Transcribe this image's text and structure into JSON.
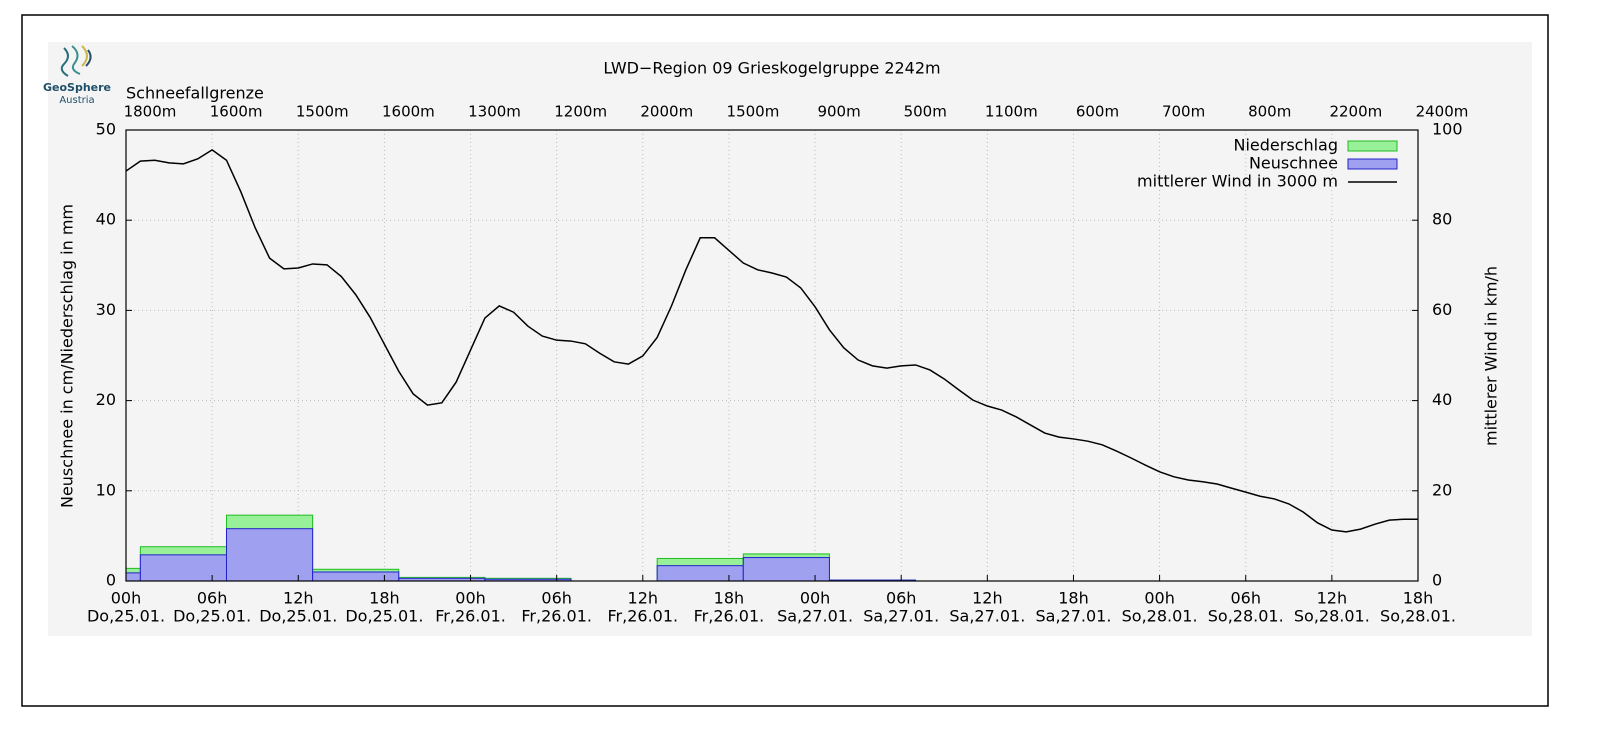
{
  "logo": {
    "name": "GeoSphere",
    "sub": "Austria"
  },
  "chart_data": {
    "type": "combo",
    "title": "LWD−Region 09 Grieskogelgruppe 2242m",
    "ylabel": "Neuschnee in cm/Niederschlag in mm",
    "y2label": "mittlerer Wind in km/h",
    "xlim": [
      0,
      90
    ],
    "ylim": [
      0,
      50
    ],
    "yticks": [
      0,
      10,
      20,
      30,
      40,
      50
    ],
    "y2lim": [
      0,
      100
    ],
    "y2ticks": [
      0,
      20,
      40,
      60,
      80,
      100
    ],
    "xticks": [
      {
        "value": 0,
        "label": "00h"
      },
      {
        "value": 6,
        "label": "06h"
      },
      {
        "value": 12,
        "label": "12h"
      },
      {
        "value": 18,
        "label": "18h"
      },
      {
        "value": 24,
        "label": "00h"
      },
      {
        "value": 30,
        "label": "06h"
      },
      {
        "value": 36,
        "label": "12h"
      },
      {
        "value": 42,
        "label": "18h"
      },
      {
        "value": 48,
        "label": "00h"
      },
      {
        "value": 54,
        "label": "06h"
      },
      {
        "value": 60,
        "label": "12h"
      },
      {
        "value": 66,
        "label": "18h"
      },
      {
        "value": 72,
        "label": "00h"
      },
      {
        "value": 78,
        "label": "06h"
      },
      {
        "value": 84,
        "label": "12h"
      },
      {
        "value": 90,
        "label": "18h"
      }
    ],
    "xtick_dates": [
      "Do,25.01.",
      "Do,25.01.",
      "Do,25.01.",
      "Do,25.01.",
      "Fr,26.01.",
      "Fr,26.01.",
      "Fr,26.01.",
      "Fr,26.01.",
      "Sa,27.01.",
      "Sa,27.01.",
      "Sa,27.01.",
      "Sa,27.01.",
      "So,28.01.",
      "So,28.01.",
      "So,28.01.",
      "So,28.01."
    ],
    "top_axis": {
      "title": "Schneefallgrenze",
      "labels": [
        "1800m",
        "1600m",
        "1500m",
        "1600m",
        "1300m",
        "1200m",
        "2000m",
        "1500m",
        "900m",
        "500m",
        "1100m",
        "600m",
        "700m",
        "800m",
        "2200m",
        "2400m"
      ]
    },
    "grid": true,
    "legend": "top-right",
    "bins": [
      0,
      1,
      7,
      13,
      19,
      25,
      31,
      37,
      43,
      49,
      55
    ],
    "series": [
      {
        "name": "Niederschlag",
        "type": "histogram",
        "color": "#98f098",
        "edge": "#22bb22",
        "values": [
          1.4,
          3.8,
          7.3,
          1.3,
          0.4,
          0.3,
          0,
          2.5,
          3.0,
          0.1
        ]
      },
      {
        "name": "Neuschnee",
        "type": "histogram",
        "color": "#a0a0f0",
        "edge": "#2222cc",
        "values": [
          0.9,
          2.9,
          5.8,
          1.0,
          0.3,
          0.2,
          0,
          1.7,
          2.6,
          0.1
        ]
      },
      {
        "name": "mittlerer Wind in 3000 m",
        "type": "line",
        "axis": "y2",
        "color": "#000000",
        "x": [
          0,
          1,
          2,
          3,
          4,
          5,
          6,
          7,
          8,
          9,
          10,
          11,
          12,
          13,
          14,
          15,
          16,
          17,
          18,
          19,
          20,
          21,
          22,
          23,
          24,
          25,
          26,
          27,
          28,
          29,
          30,
          31,
          32,
          33,
          34,
          35,
          36,
          37,
          38,
          39,
          40,
          41,
          42,
          43,
          44,
          45,
          46,
          47,
          48,
          49,
          50,
          51,
          52,
          53,
          54,
          55,
          56,
          57,
          58,
          59,
          60,
          61,
          62,
          63,
          64,
          65,
          66,
          67,
          68,
          69,
          70,
          71,
          72,
          73,
          74,
          75,
          76,
          77,
          78,
          79,
          80,
          81,
          82,
          83,
          84,
          85,
          86,
          87,
          88,
          89,
          90
        ],
        "values": [
          90.9,
          93.1,
          93.3,
          92.7,
          92.5,
          93.6,
          95.6,
          93.3,
          86.3,
          78.3,
          71.6,
          69.2,
          69.4,
          70.3,
          70.1,
          67.5,
          63.5,
          58.5,
          52.5,
          46.5,
          41.5,
          39.0,
          39.5,
          44.1,
          51.2,
          58.3,
          61.0,
          59.6,
          56.5,
          54.3,
          53.4,
          53.2,
          52.6,
          50.5,
          48.6,
          48.1,
          49.9,
          54.0,
          61.0,
          69.0,
          76.1,
          76.1,
          73.3,
          70.5,
          69.0,
          68.3,
          67.4,
          65.0,
          60.8,
          55.7,
          51.7,
          49.0,
          47.7,
          47.2,
          47.7,
          47.9,
          46.8,
          44.8,
          42.4,
          40.1,
          38.8,
          37.9,
          36.4,
          34.6,
          32.8,
          31.9,
          31.5,
          31.0,
          30.2,
          28.8,
          27.3,
          25.7,
          24.2,
          23.1,
          22.4,
          22.0,
          21.5,
          20.6,
          19.7,
          18.8,
          18.2,
          17.1,
          15.3,
          12.9,
          11.3,
          10.9,
          11.5,
          12.6,
          13.5,
          13.7,
          13.7
        ]
      }
    ]
  }
}
